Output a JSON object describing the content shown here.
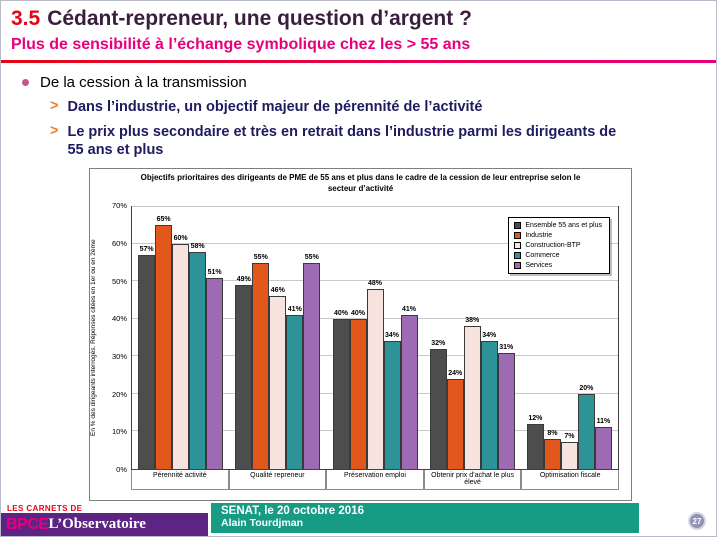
{
  "theme": {
    "accent_red": "#e30613",
    "accent_magenta": "#e6007e",
    "title_dark": "#3b1e3e",
    "bullet_navy": "#1e1b5e",
    "footer_teal": "#169b84",
    "logo_purple": "#5c2483"
  },
  "header": {
    "number": "3.5",
    "title": "Cédant-repreneur, une question d’argent ?",
    "subtitle": "Plus de sensibilité à l’échange symbolique chez les > 55 ans"
  },
  "bullets": {
    "main": "De la cession à la transmission",
    "sub1": "Dans l’industrie,  un objectif majeur de pérennité de l’activité",
    "sub2": "Le prix plus secondaire et très en retrait dans l’industrie  parmi les dirigeants  de 55 ans et plus",
    "chevron": ">"
  },
  "chart_data": {
    "type": "bar",
    "title": "Objectifs prioritaires des dirigeants de PME de 55 ans et plus dans le cadre de la cession de leur entreprise selon le secteur d’activité",
    "ylabel": "En % des dirigeants interrogés. Réponses citées en 1er ou en 2ème",
    "ylim": [
      0,
      70
    ],
    "ytick_step": 10,
    "grid": true,
    "legend_position": "top-right",
    "categories": [
      "Pérennité activité",
      "Qualité repreneur",
      "Préservation emploi",
      "Obtenir prix d’achat le plus élevé",
      "Optimisation fiscale"
    ],
    "series": [
      {
        "name": "Ensemble 55 ans et plus",
        "color": "#4d4d4d",
        "values": [
          57,
          49,
          40,
          32,
          12
        ]
      },
      {
        "name": "Industrie",
        "color": "#e2571b",
        "values": [
          65,
          55,
          40,
          24,
          8
        ]
      },
      {
        "name": "Construction-BTP",
        "color": "#f6e3de",
        "values": [
          60,
          46,
          48,
          38,
          7
        ]
      },
      {
        "name": "Commerce",
        "color": "#2e9396",
        "values": [
          58,
          41,
          34,
          34,
          20
        ]
      },
      {
        "name": "Services",
        "color": "#9c6bb3",
        "values": [
          51,
          55,
          41,
          31,
          11
        ]
      }
    ]
  },
  "footer": {
    "logo_top": "LES CARNETS DE",
    "logo_bpce": "BPCE",
    "logo_observatoire": "L’Observatoire",
    "event": "SENAT, le 20 octobre 2016",
    "author": "Alain Tourdjman",
    "page": "27"
  }
}
